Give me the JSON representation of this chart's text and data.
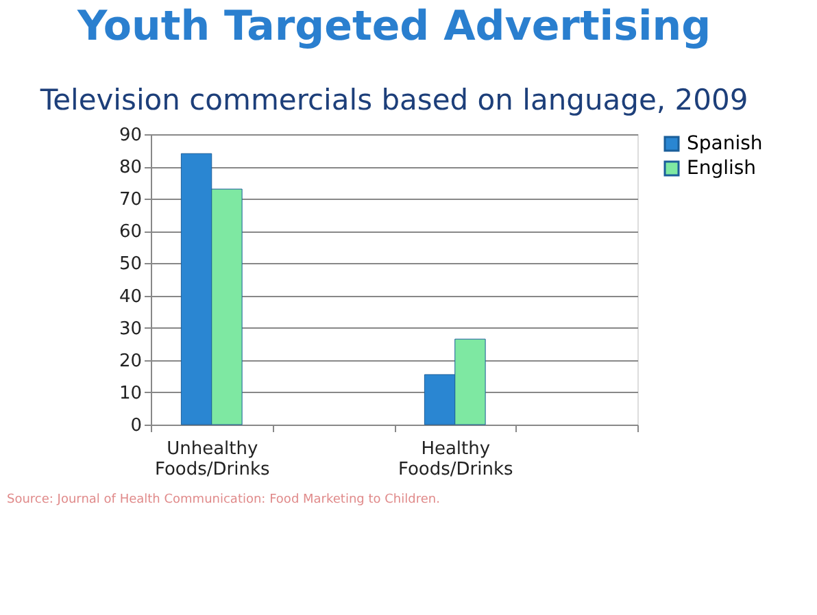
{
  "chart_data": {
    "type": "bar",
    "title": "Youth Targeted Advertising",
    "subtitle": "Television commercials based on language, 2009",
    "categories": [
      "Unhealthy Foods/Drinks",
      null,
      "Healthy Foods/Drinks",
      null
    ],
    "series": [
      {
        "name": "Spanish",
        "color": "#2a86d2",
        "values": [
          84,
          null,
          15.5,
          null
        ]
      },
      {
        "name": "English",
        "color": "#7ee8a2",
        "values": [
          73,
          null,
          26.5,
          null
        ]
      }
    ],
    "ylim": [
      0,
      90
    ],
    "yticks": [
      0,
      10,
      20,
      30,
      40,
      50,
      60,
      70,
      80,
      90
    ],
    "grid": "y",
    "legend": "right",
    "annotations": [
      "Source: Journal of Health Communication: Food Marketing to Children."
    ]
  }
}
